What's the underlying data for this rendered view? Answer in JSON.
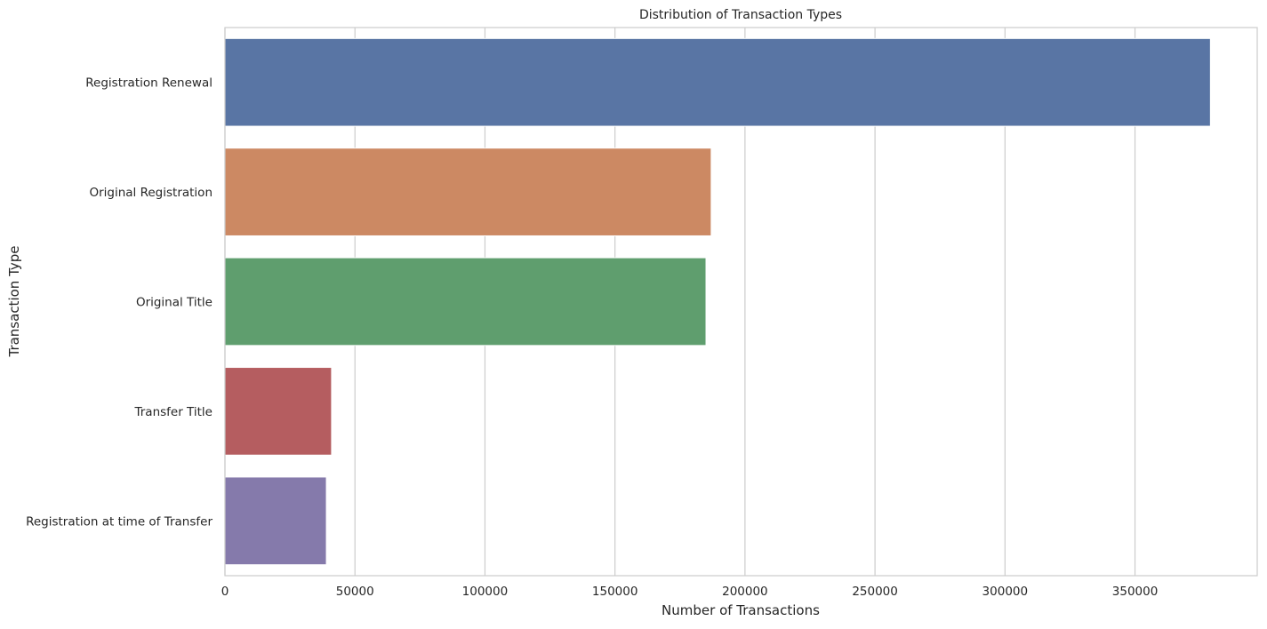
{
  "chart_data": {
    "type": "bar",
    "orientation": "horizontal",
    "title": "Distribution of Transaction Types",
    "xlabel": "Number of Transactions",
    "ylabel": "Transaction Type",
    "xlim": [
      0,
      397000
    ],
    "x_ticks": [
      0,
      50000,
      100000,
      150000,
      200000,
      250000,
      300000,
      350000
    ],
    "x_tick_labels": [
      "0",
      "50000",
      "100000",
      "150000",
      "200000",
      "250000",
      "300000",
      "350000"
    ],
    "categories": [
      "Registration Renewal",
      "Original Registration",
      "Original Title",
      "Transfer Title",
      "Registration at time of Transfer"
    ],
    "values": [
      379000,
      187000,
      185000,
      41000,
      39000
    ],
    "colors": [
      "#5975a4",
      "#cc8963",
      "#5f9e6e",
      "#b55d60",
      "#857aab"
    ],
    "grid": "x",
    "legend": "none"
  }
}
